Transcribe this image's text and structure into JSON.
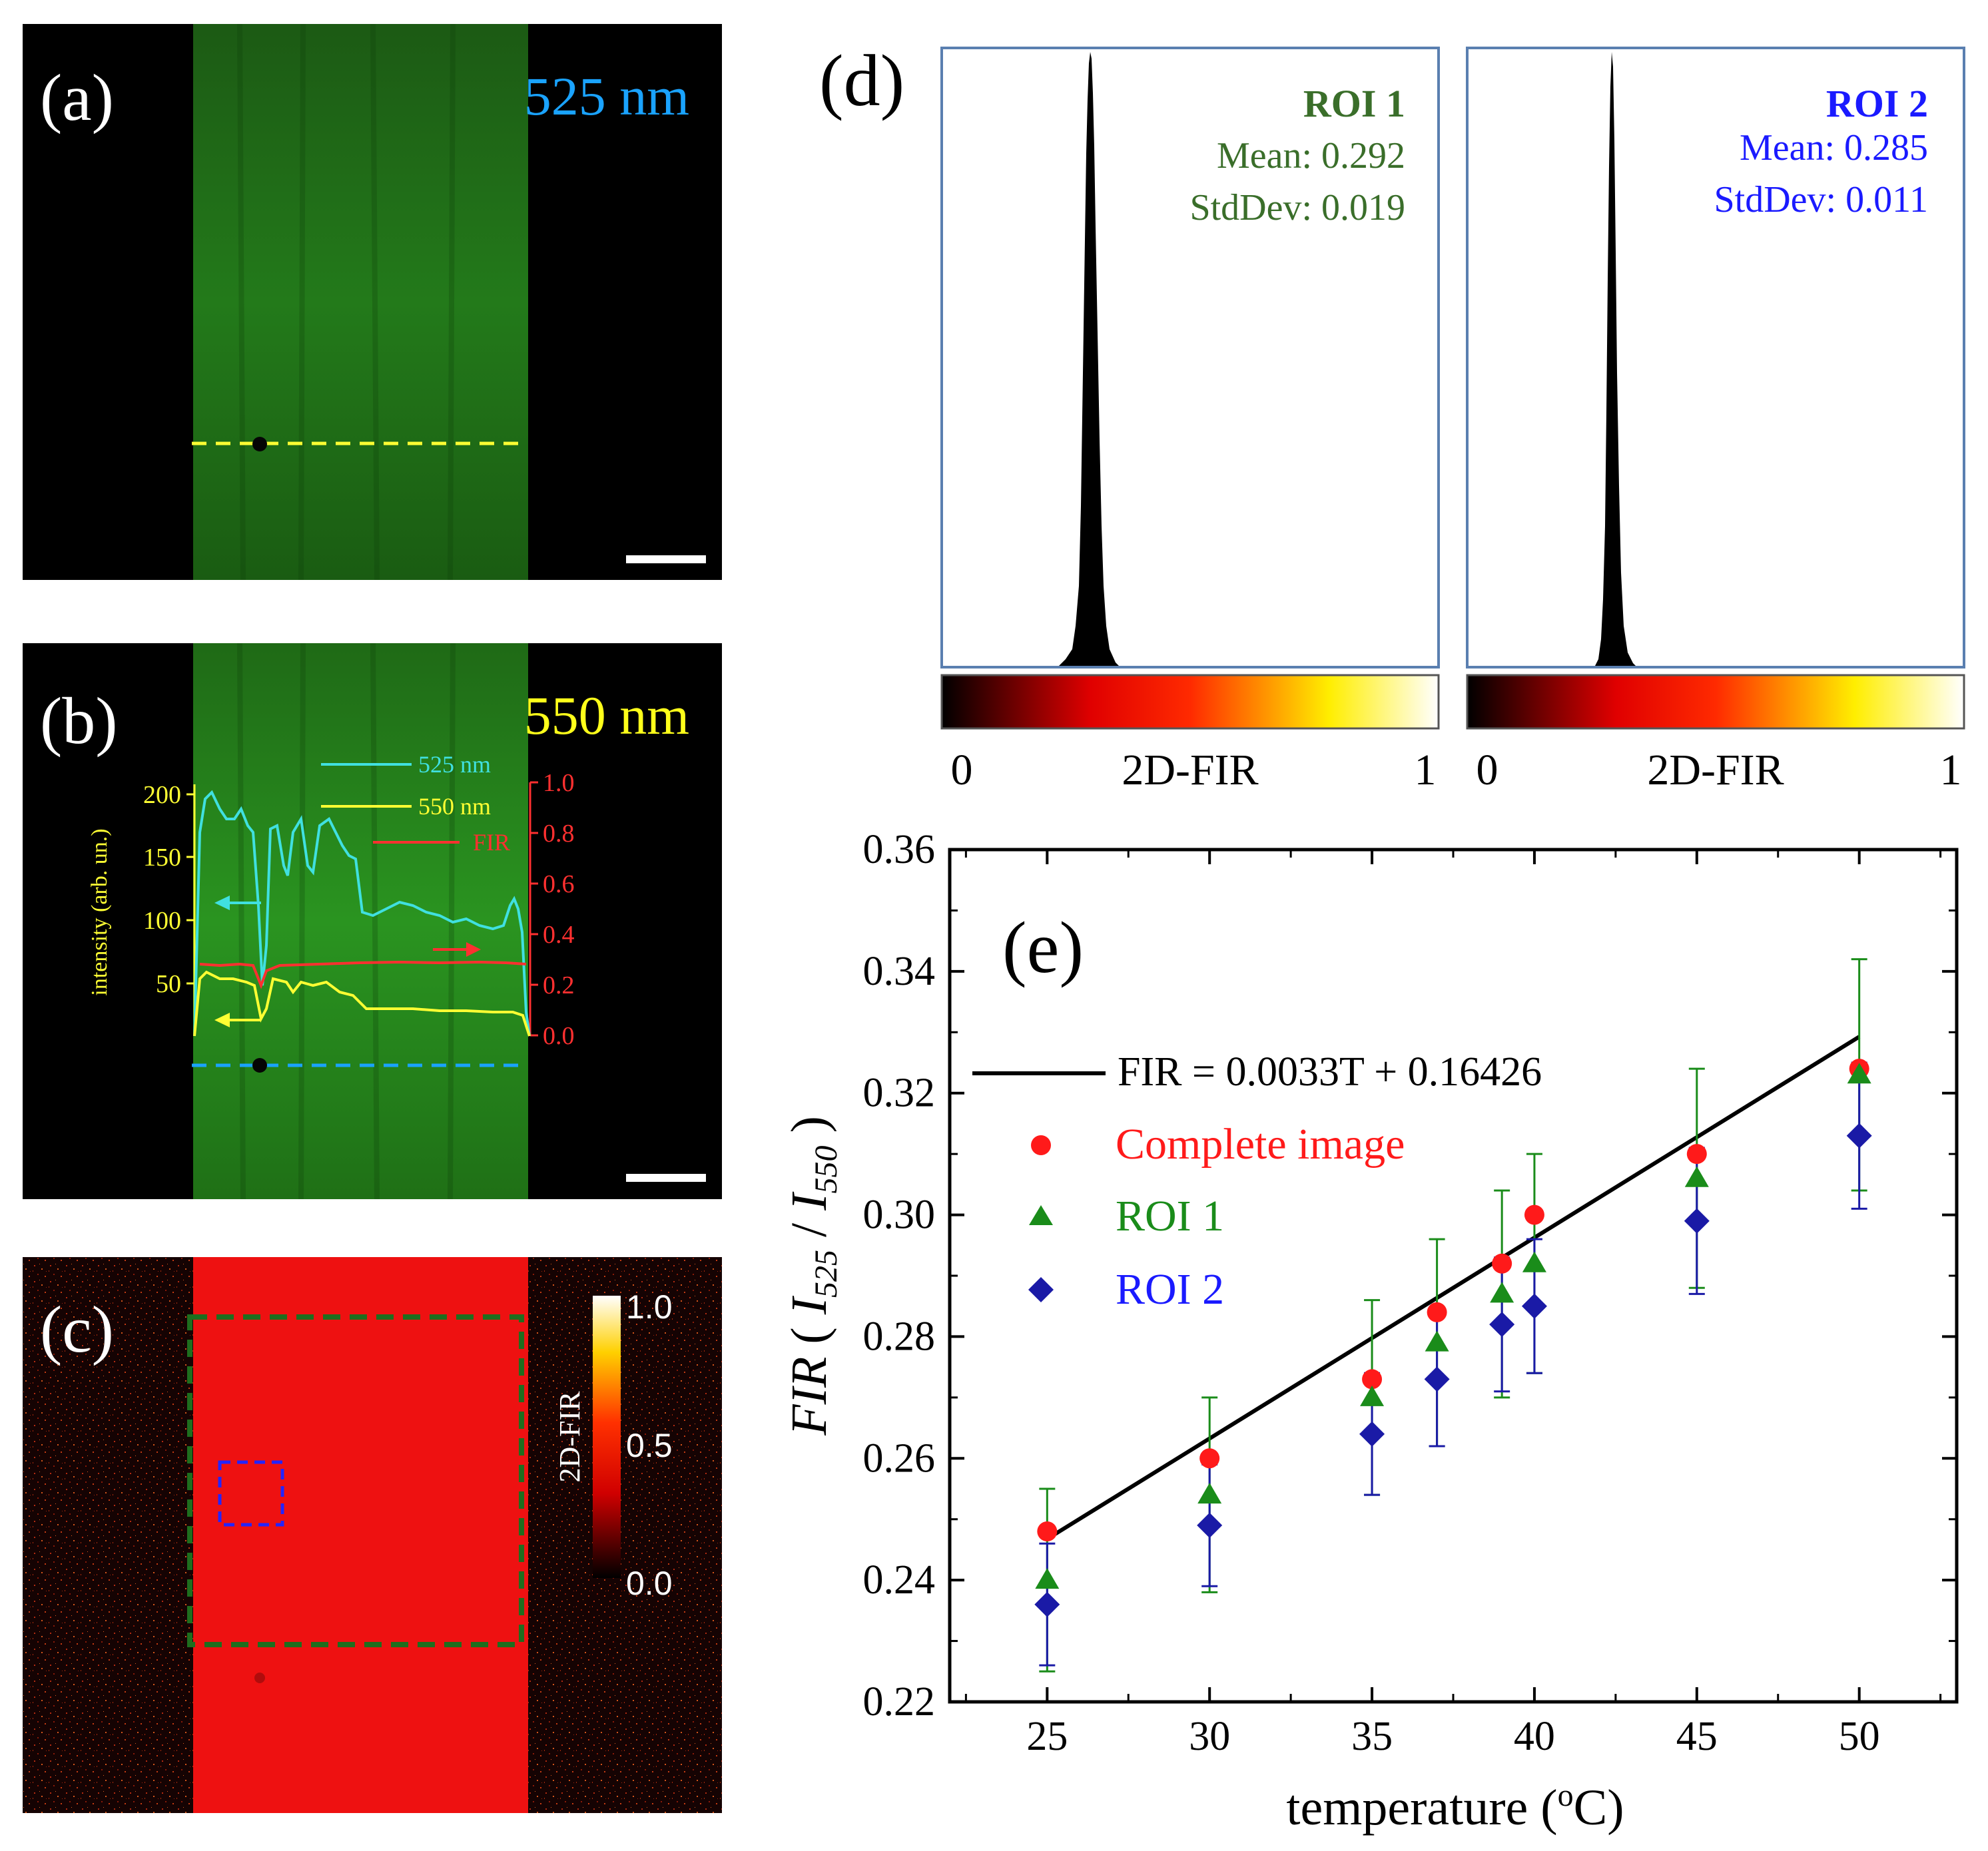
{
  "panels": {
    "a": {
      "tag": "(a)",
      "wavelength": "525 nm"
    },
    "b": {
      "tag": "(b)",
      "wavelength": "550 nm",
      "legend": [
        "525 nm",
        "550 nm",
        "FIR"
      ],
      "left_axis_label": "intensity (arb. un.)",
      "left_ticks": [
        "200",
        "150",
        "100",
        "50"
      ],
      "right_ticks": [
        "1.0",
        "0.8",
        "0.6",
        "0.4",
        "0.2",
        "0.0"
      ]
    },
    "c": {
      "tag": "(c)",
      "colorbar_label": "2D-FIR",
      "colorbar_ticks": [
        "1.0",
        "0.5",
        "0.0"
      ]
    },
    "d": {
      "tag": "(d)",
      "roi1": {
        "title": "ROI 1",
        "mean": "Mean: 0.292",
        "std": "StdDev: 0.019"
      },
      "roi2": {
        "title": "ROI 2",
        "mean": "Mean: 0.285",
        "std": "StdDev: 0.011"
      },
      "scale_min": "0",
      "scale_max": "1",
      "scale_label": "2D-FIR"
    },
    "e": {
      "tag": "(e)",
      "fit_label": "FIR = 0.0033T + 0.16426",
      "ylabel_parts": {
        "fir": "FIR",
        "open": " ( ",
        "i": "I",
        "sub1": "525",
        "slash": " / ",
        "sub2": "550",
        "close": " )"
      }
    }
  },
  "colors": {
    "complete": "#ff1a1a",
    "roi1": "#1a8c1a",
    "roi2": "#1a1aa6",
    "fit": "#000000",
    "cyan_trace": "#40e0e0",
    "yellow_trace": "#ffff33",
    "red_trace": "#ff3030",
    "roi1_text": "#3a6e2a",
    "roi2_text": "#1a1aff",
    "label_cyan": "#1aa3ff",
    "label_yellow": "#ffff1a"
  },
  "chart_data": {
    "type": "scatter",
    "xlabel": "temperature (oC)",
    "ylabel": "FIR ( I525 / I550 )",
    "xlim": [
      22,
      53
    ],
    "ylim": [
      0.22,
      0.36
    ],
    "xticks": [
      25,
      30,
      35,
      40,
      45,
      50
    ],
    "yticks": [
      0.22,
      0.24,
      0.26,
      0.28,
      0.3,
      0.32,
      0.34,
      0.36
    ],
    "x": [
      25,
      30,
      35,
      37,
      39,
      40,
      45,
      50
    ],
    "fit": {
      "name": "FIR = 0.0033T + 0.16426",
      "slope": 0.0033,
      "intercept": 0.16426,
      "x_range": [
        25,
        50
      ]
    },
    "series": [
      {
        "name": "Complete image",
        "marker": "circle",
        "values": [
          0.248,
          0.26,
          0.273,
          0.284,
          0.292,
          0.3,
          0.31,
          0.324
        ]
      },
      {
        "name": "ROI 1",
        "marker": "triangle",
        "values": [
          0.24,
          0.254,
          0.27,
          0.279,
          0.287,
          0.292,
          0.306,
          0.323
        ],
        "err": [
          0.015,
          0.016,
          0.016,
          0.017,
          0.017,
          0.018,
          0.018,
          0.019
        ]
      },
      {
        "name": "ROI 2",
        "marker": "diamond",
        "values": [
          0.236,
          0.249,
          0.264,
          0.273,
          0.282,
          0.285,
          0.299,
          0.313
        ],
        "err": [
          0.01,
          0.01,
          0.01,
          0.011,
          0.011,
          0.011,
          0.012,
          0.012
        ]
      }
    ],
    "legend_position": "upper-left"
  }
}
